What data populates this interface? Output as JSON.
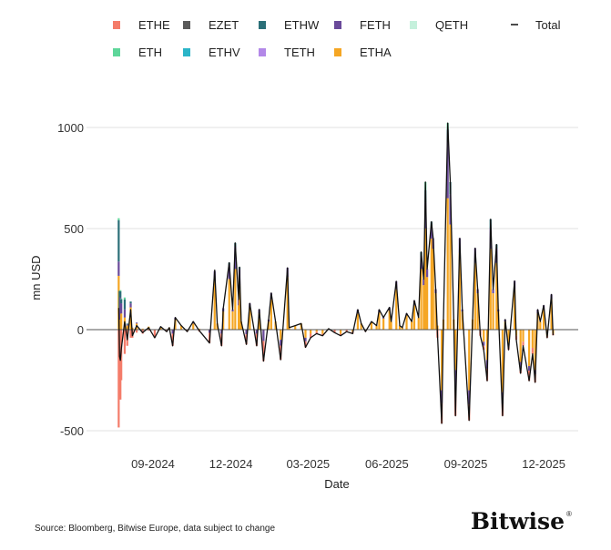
{
  "chart_data": {
    "type": "bar",
    "subtype": "stacked bar with total line",
    "xlabel": "Date",
    "ylabel": "mn USD",
    "ylim": [
      -500,
      1000
    ],
    "yticks": [
      1000,
      500,
      0,
      -500
    ],
    "xticks": [
      {
        "date": "2024-09-01",
        "label": "09-2024"
      },
      {
        "date": "2024-12-01",
        "label": "12-2024"
      },
      {
        "date": "2025-03-01",
        "label": "03-2025"
      },
      {
        "date": "2025-06-01",
        "label": "06-2025"
      },
      {
        "date": "2025-09-01",
        "label": "09-2025"
      },
      {
        "date": "2025-12-01",
        "label": "12-2025"
      }
    ],
    "grid": "horizontal",
    "legend_placement": "top",
    "legend": [
      {
        "name": "ETHE",
        "color": "#f47c6a"
      },
      {
        "name": "EZET",
        "color": "#5b5b5b"
      },
      {
        "name": "ETHW",
        "color": "#2b6f78"
      },
      {
        "name": "FETH",
        "color": "#6a4a9a"
      },
      {
        "name": "QETH",
        "color": "#c5f0dc"
      },
      {
        "name": "ETH",
        "color": "#5ed69a"
      },
      {
        "name": "ETHV",
        "color": "#2bb5c8"
      },
      {
        "name": "TETH",
        "color": "#b388e8"
      },
      {
        "name": "ETHA",
        "color": "#f5a623"
      }
    ],
    "total_legend": {
      "name": "Total",
      "color": "#111111"
    },
    "columns": [
      "date",
      "Total",
      "ETHA",
      "ETHE",
      "FETH",
      "ETHW",
      "ETH"
    ],
    "rows": [
      [
        "2024-07-23",
        107,
        266,
        -484,
        71,
        204,
        10
      ],
      [
        "2024-07-24",
        -133,
        17,
        -327,
        75,
        100,
        0
      ],
      [
        "2024-07-25",
        -152,
        50,
        -346,
        110,
        30,
        5
      ],
      [
        "2024-07-26",
        -96,
        80,
        -250,
        50,
        20,
        4
      ],
      [
        "2024-07-30",
        39,
        60,
        -120,
        40,
        50,
        9
      ],
      [
        "2024-08-02",
        -50,
        20,
        -80,
        5,
        5,
        0
      ],
      [
        "2024-08-06",
        99,
        110,
        -40,
        20,
        9,
        0
      ],
      [
        "2024-08-08",
        -30,
        10,
        -40,
        0,
        0,
        0
      ],
      [
        "2024-08-13",
        20,
        30,
        -15,
        5,
        0,
        0
      ],
      [
        "2024-08-20",
        -15,
        5,
        -20,
        0,
        0,
        0
      ],
      [
        "2024-08-27",
        10,
        15,
        -5,
        0,
        0,
        0
      ],
      [
        "2024-09-03",
        -40,
        0,
        -40,
        0,
        0,
        0
      ],
      [
        "2024-09-10",
        15,
        10,
        0,
        5,
        0,
        0
      ],
      [
        "2024-09-17",
        -10,
        0,
        -10,
        0,
        0,
        0
      ],
      [
        "2024-09-20",
        10,
        10,
        0,
        0,
        0,
        0
      ],
      [
        "2024-09-24",
        -80,
        0,
        -60,
        -20,
        0,
        0
      ],
      [
        "2024-09-27",
        60,
        50,
        0,
        10,
        0,
        0
      ],
      [
        "2024-10-04",
        20,
        20,
        0,
        0,
        0,
        0
      ],
      [
        "2024-10-11",
        -10,
        0,
        -10,
        0,
        0,
        0
      ],
      [
        "2024-10-18",
        40,
        30,
        0,
        10,
        0,
        0
      ],
      [
        "2024-10-25",
        -5,
        5,
        -10,
        0,
        0,
        0
      ],
      [
        "2024-11-06",
        -66,
        0,
        -50,
        -16,
        0,
        0
      ],
      [
        "2024-11-12",
        294,
        250,
        0,
        40,
        0,
        0
      ],
      [
        "2024-11-15",
        30,
        30,
        0,
        0,
        0,
        0
      ],
      [
        "2024-11-20",
        -80,
        0,
        -60,
        -20,
        0,
        0
      ],
      [
        "2024-11-22",
        106,
        90,
        0,
        16,
        0,
        0
      ],
      [
        "2024-11-29",
        331,
        250,
        0,
        70,
        11,
        0
      ],
      [
        "2024-12-03",
        100,
        90,
        0,
        10,
        0,
        0
      ],
      [
        "2024-12-06",
        429,
        300,
        0,
        110,
        19,
        0
      ],
      [
        "2024-12-10",
        150,
        120,
        0,
        30,
        0,
        0
      ],
      [
        "2024-12-11",
        309,
        220,
        0,
        80,
        9,
        0
      ],
      [
        "2024-12-13",
        40,
        40,
        0,
        0,
        0,
        0
      ],
      [
        "2024-12-19",
        -73,
        0,
        -50,
        -23,
        0,
        0
      ],
      [
        "2024-12-23",
        130,
        110,
        0,
        20,
        0,
        0
      ],
      [
        "2024-12-31",
        -80,
        0,
        -60,
        -20,
        0,
        0
      ],
      [
        "2025-01-03",
        100,
        80,
        0,
        20,
        0,
        0
      ],
      [
        "2025-01-08",
        -156,
        0,
        -100,
        -56,
        0,
        0
      ],
      [
        "2025-01-14",
        50,
        40,
        0,
        10,
        0,
        0
      ],
      [
        "2025-01-17",
        181,
        150,
        0,
        31,
        0,
        0
      ],
      [
        "2025-01-22",
        40,
        40,
        0,
        0,
        0,
        0
      ],
      [
        "2025-01-28",
        -149,
        -50,
        -70,
        -29,
        0,
        0
      ],
      [
        "2025-02-05",
        306,
        260,
        0,
        46,
        0,
        0
      ],
      [
        "2025-02-07",
        10,
        10,
        0,
        0,
        0,
        0
      ],
      [
        "2025-02-14",
        20,
        20,
        0,
        0,
        0,
        0
      ],
      [
        "2025-02-21",
        30,
        30,
        0,
        0,
        0,
        0
      ],
      [
        "2025-02-26",
        -88,
        -40,
        -30,
        -18,
        0,
        0
      ],
      [
        "2025-03-04",
        -40,
        -20,
        -20,
        0,
        0,
        0
      ],
      [
        "2025-03-11",
        -20,
        -10,
        -10,
        0,
        0,
        0
      ],
      [
        "2025-03-18",
        -30,
        -20,
        -10,
        0,
        0,
        0
      ],
      [
        "2025-03-25",
        5,
        5,
        0,
        0,
        0,
        0
      ],
      [
        "2025-04-01",
        -15,
        0,
        -15,
        0,
        0,
        0
      ],
      [
        "2025-04-08",
        -30,
        -20,
        -10,
        0,
        0,
        0
      ],
      [
        "2025-04-15",
        -10,
        0,
        -10,
        0,
        0,
        0
      ],
      [
        "2025-04-22",
        -20,
        -10,
        -10,
        0,
        0,
        0
      ],
      [
        "2025-04-28",
        99,
        80,
        0,
        19,
        0,
        0
      ],
      [
        "2025-05-02",
        30,
        30,
        0,
        0,
        0,
        0
      ],
      [
        "2025-05-07",
        -10,
        0,
        -10,
        0,
        0,
        0
      ],
      [
        "2025-05-14",
        40,
        35,
        0,
        5,
        0,
        0
      ],
      [
        "2025-05-20",
        20,
        20,
        0,
        0,
        0,
        0
      ],
      [
        "2025-05-23",
        99,
        85,
        0,
        14,
        0,
        0
      ],
      [
        "2025-05-28",
        60,
        55,
        0,
        5,
        0,
        0
      ],
      [
        "2025-06-04",
        110,
        95,
        0,
        15,
        0,
        0
      ],
      [
        "2025-06-06",
        40,
        40,
        0,
        0,
        0,
        0
      ],
      [
        "2025-06-12",
        239,
        200,
        0,
        39,
        0,
        0
      ],
      [
        "2025-06-16",
        20,
        20,
        0,
        0,
        0,
        0
      ],
      [
        "2025-06-19",
        10,
        10,
        0,
        0,
        0,
        0
      ],
      [
        "2025-06-24",
        80,
        70,
        0,
        10,
        0,
        0
      ],
      [
        "2025-06-30",
        40,
        40,
        0,
        0,
        0,
        0
      ],
      [
        "2025-07-03",
        144,
        120,
        0,
        24,
        0,
        0
      ],
      [
        "2025-07-08",
        60,
        60,
        0,
        0,
        0,
        0
      ],
      [
        "2025-07-11",
        384,
        300,
        0,
        60,
        24,
        0
      ],
      [
        "2025-07-14",
        250,
        220,
        0,
        30,
        0,
        0
      ],
      [
        "2025-07-16",
        730,
        500,
        0,
        130,
        60,
        40
      ],
      [
        "2025-07-18",
        300,
        260,
        0,
        40,
        0,
        0
      ],
      [
        "2025-07-23",
        534,
        450,
        0,
        60,
        24,
        0
      ],
      [
        "2025-07-25",
        452,
        400,
        0,
        52,
        0,
        0
      ],
      [
        "2025-07-28",
        200,
        180,
        0,
        20,
        0,
        0
      ],
      [
        "2025-07-30",
        -20,
        20,
        -40,
        0,
        0,
        0
      ],
      [
        "2025-08-04",
        -464,
        -300,
        -100,
        -64,
        0,
        0
      ],
      [
        "2025-08-06",
        50,
        50,
        0,
        0,
        0,
        0
      ],
      [
        "2025-08-11",
        1022,
        650,
        0,
        280,
        60,
        32
      ],
      [
        "2025-08-14",
        730,
        520,
        0,
        150,
        60,
        0
      ],
      [
        "2025-08-18",
        50,
        50,
        0,
        0,
        0,
        0
      ],
      [
        "2025-08-20",
        -426,
        -200,
        -130,
        -96,
        0,
        0
      ],
      [
        "2025-08-25",
        452,
        380,
        0,
        72,
        0,
        0
      ],
      [
        "2025-08-28",
        100,
        90,
        0,
        10,
        0,
        0
      ],
      [
        "2025-09-05",
        -449,
        -300,
        -80,
        -69,
        0,
        0
      ],
      [
        "2025-09-09",
        50,
        50,
        0,
        0,
        0,
        0
      ],
      [
        "2025-09-12",
        403,
        330,
        0,
        73,
        0,
        0
      ],
      [
        "2025-09-15",
        200,
        180,
        0,
        20,
        0,
        0
      ],
      [
        "2025-09-18",
        -30,
        0,
        -30,
        0,
        0,
        0
      ],
      [
        "2025-09-22",
        -100,
        -60,
        -20,
        -20,
        0,
        0
      ],
      [
        "2025-09-26",
        -253,
        -150,
        -60,
        -43,
        0,
        0
      ],
      [
        "2025-09-30",
        546,
        400,
        0,
        100,
        46,
        0
      ],
      [
        "2025-10-03",
        200,
        180,
        0,
        20,
        0,
        0
      ],
      [
        "2025-10-07",
        421,
        330,
        0,
        71,
        20,
        0
      ],
      [
        "2025-10-09",
        100,
        90,
        0,
        10,
        0,
        0
      ],
      [
        "2025-10-14",
        -426,
        -310,
        -60,
        -56,
        0,
        0
      ],
      [
        "2025-10-17",
        50,
        40,
        0,
        10,
        0,
        0
      ],
      [
        "2025-10-21",
        -100,
        -70,
        -20,
        -10,
        0,
        0
      ],
      [
        "2025-10-28",
        241,
        200,
        0,
        41,
        0,
        0
      ],
      [
        "2025-10-30",
        -50,
        -30,
        -20,
        0,
        0,
        0
      ],
      [
        "2025-11-04",
        -216,
        -160,
        -30,
        -26,
        0,
        0
      ],
      [
        "2025-11-07",
        -80,
        -60,
        -20,
        0,
        0,
        0
      ],
      [
        "2025-11-14",
        -253,
        -180,
        -50,
        -23,
        0,
        0
      ],
      [
        "2025-11-18",
        -120,
        -90,
        -30,
        0,
        0,
        0
      ],
      [
        "2025-11-21",
        -261,
        -200,
        -40,
        -21,
        0,
        0
      ],
      [
        "2025-11-24",
        99,
        80,
        0,
        19,
        0,
        0
      ],
      [
        "2025-11-27",
        40,
        40,
        0,
        0,
        0,
        0
      ],
      [
        "2025-12-01",
        120,
        100,
        0,
        20,
        0,
        0
      ],
      [
        "2025-12-05",
        -40,
        -30,
        -10,
        0,
        0,
        0
      ],
      [
        "2025-12-10",
        174,
        150,
        0,
        24,
        0,
        0
      ],
      [
        "2025-12-12",
        -28,
        -20,
        -8,
        0,
        0,
        0
      ]
    ]
  },
  "footer": {
    "source": "Source: Bloomberg, Bitwise Europe, data subject to change",
    "logo_text": "Bitwise",
    "logo_mark": "®"
  }
}
